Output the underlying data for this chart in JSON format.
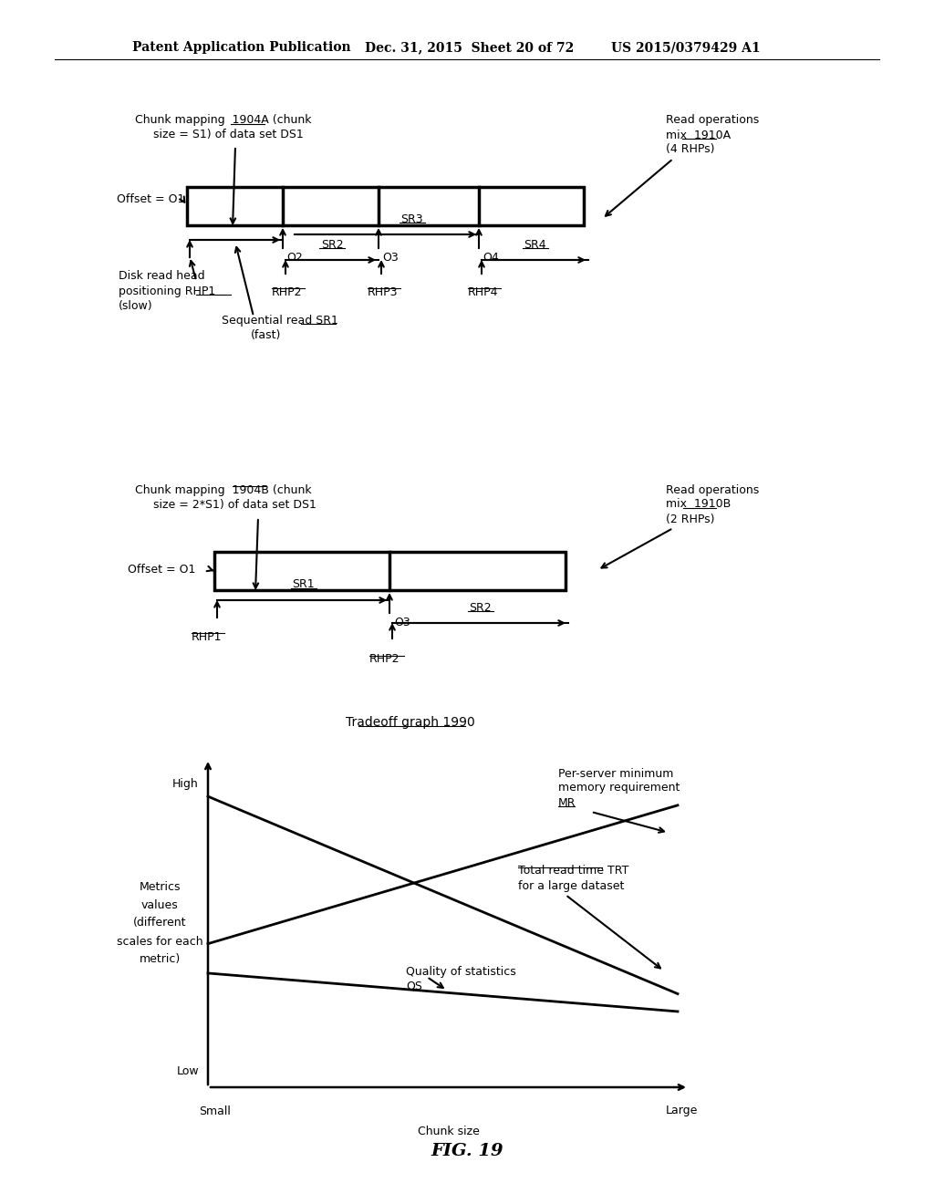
{
  "header_left": "Patent Application Publication",
  "header_mid": "Dec. 31, 2015  Sheet 20 of 72",
  "header_right": "US 2015/0379429 A1",
  "fig_label": "FIG. 19",
  "bg_color": "#ffffff",
  "text_color": "#000000"
}
